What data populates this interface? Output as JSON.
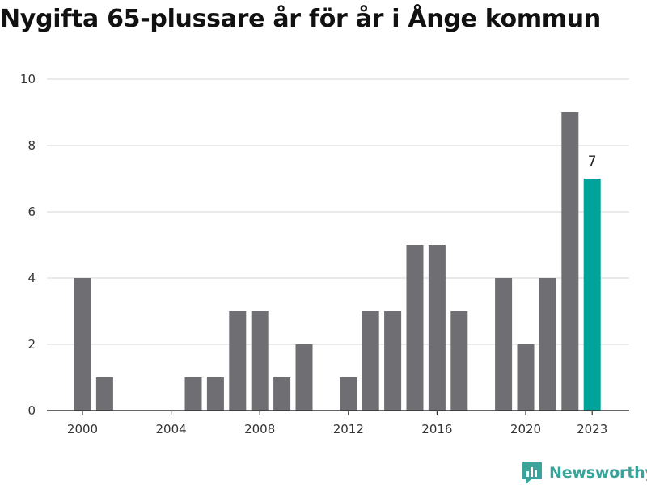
{
  "colors": {
    "bar": "#6e6e73",
    "highlight": "#00a39a",
    "grid": "#dddddd",
    "axis": "#333333",
    "brand": "#3aa39a"
  },
  "logo": {
    "text": "Newsworthy",
    "icon": "chart-bubble-icon"
  },
  "chart_data": {
    "type": "bar",
    "title": "Nygifta 65-plussare år för år i Ånge kommun",
    "xlabel": "",
    "ylabel": "",
    "ylim": [
      0,
      10
    ],
    "yticks": [
      0,
      2,
      4,
      6,
      8,
      10
    ],
    "xticks": [
      2000,
      2004,
      2008,
      2012,
      2016,
      2020,
      2023
    ],
    "grid": true,
    "categories": [
      2000,
      2001,
      2002,
      2003,
      2004,
      2005,
      2006,
      2007,
      2008,
      2009,
      2010,
      2011,
      2012,
      2013,
      2014,
      2015,
      2016,
      2017,
      2018,
      2019,
      2020,
      2021,
      2022,
      2023
    ],
    "values": [
      4,
      1,
      0,
      0,
      0,
      1,
      1,
      3,
      3,
      1,
      2,
      0,
      1,
      3,
      3,
      5,
      5,
      3,
      0,
      4,
      2,
      4,
      9,
      7
    ],
    "highlight": {
      "category": 2023,
      "label": "7"
    }
  }
}
